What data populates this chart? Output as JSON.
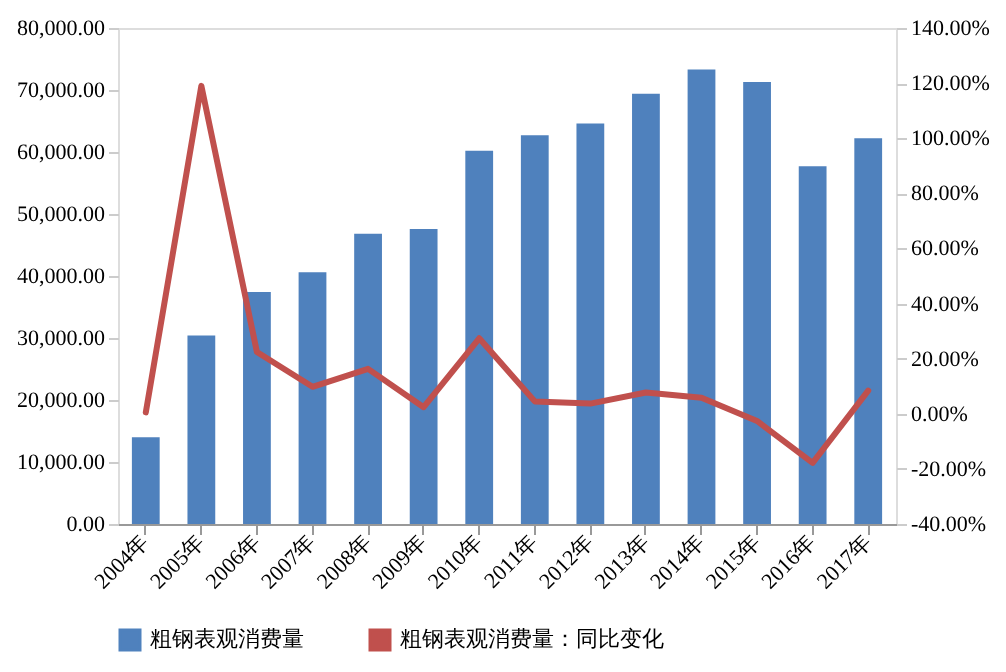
{
  "chart_data": {
    "type": "bar",
    "categories": [
      "2004年",
      "2005年",
      "2006年",
      "2007年",
      "2008年",
      "2009年",
      "2010年",
      "2011年",
      "2012年",
      "2013年",
      "2014年",
      "2015年",
      "2016年",
      "2017年"
    ],
    "series": [
      {
        "name": "粗钢表观消费量",
        "color": "#4f81bd",
        "values": [
          14000,
          30400,
          37400,
          40600,
          46800,
          47600,
          60200,
          62700,
          64600,
          69400,
          73300,
          71300,
          57700,
          62200
        ]
      },
      {
        "name": "粗钢表观消费量：同比变化",
        "type": "line",
        "axis": "y2",
        "color": "#c0504d",
        "values": [
          0.5,
          119,
          22.4,
          9.8,
          16.3,
          2.4,
          27.4,
          4.5,
          3.7,
          7.7,
          5.8,
          -2.6,
          -17.8,
          8.4
        ]
      }
    ],
    "ylim": [
      0,
      80000
    ],
    "yticks": [
      {
        "value": 0,
        "label": "0.00"
      },
      {
        "value": 10000,
        "label": "10,000.00"
      },
      {
        "value": 20000,
        "label": "20,000.00"
      },
      {
        "value": 30000,
        "label": "30,000.00"
      },
      {
        "value": 40000,
        "label": "40,000.00"
      },
      {
        "value": 50000,
        "label": "50,000.00"
      },
      {
        "value": 60000,
        "label": "60,000.00"
      },
      {
        "value": 70000,
        "label": "70,000.00"
      },
      {
        "value": 80000,
        "label": "80,000.00"
      }
    ],
    "y2lim": [
      -40,
      140
    ],
    "y2ticks": [
      {
        "value": -40,
        "label": "-40.00%"
      },
      {
        "value": -20,
        "label": "-20.00%"
      },
      {
        "value": 0,
        "label": "0.00%"
      },
      {
        "value": 20,
        "label": "20.00%"
      },
      {
        "value": 40,
        "label": "40.00%"
      },
      {
        "value": 60,
        "label": "60.00%"
      },
      {
        "value": 80,
        "label": "80.00%"
      },
      {
        "value": 100,
        "label": "100.00%"
      },
      {
        "value": 120,
        "label": "120.00%"
      },
      {
        "value": 140,
        "label": "140.00%"
      }
    ],
    "grid": false,
    "legend": "bottom",
    "line_style": "solid",
    "marker": "none"
  }
}
